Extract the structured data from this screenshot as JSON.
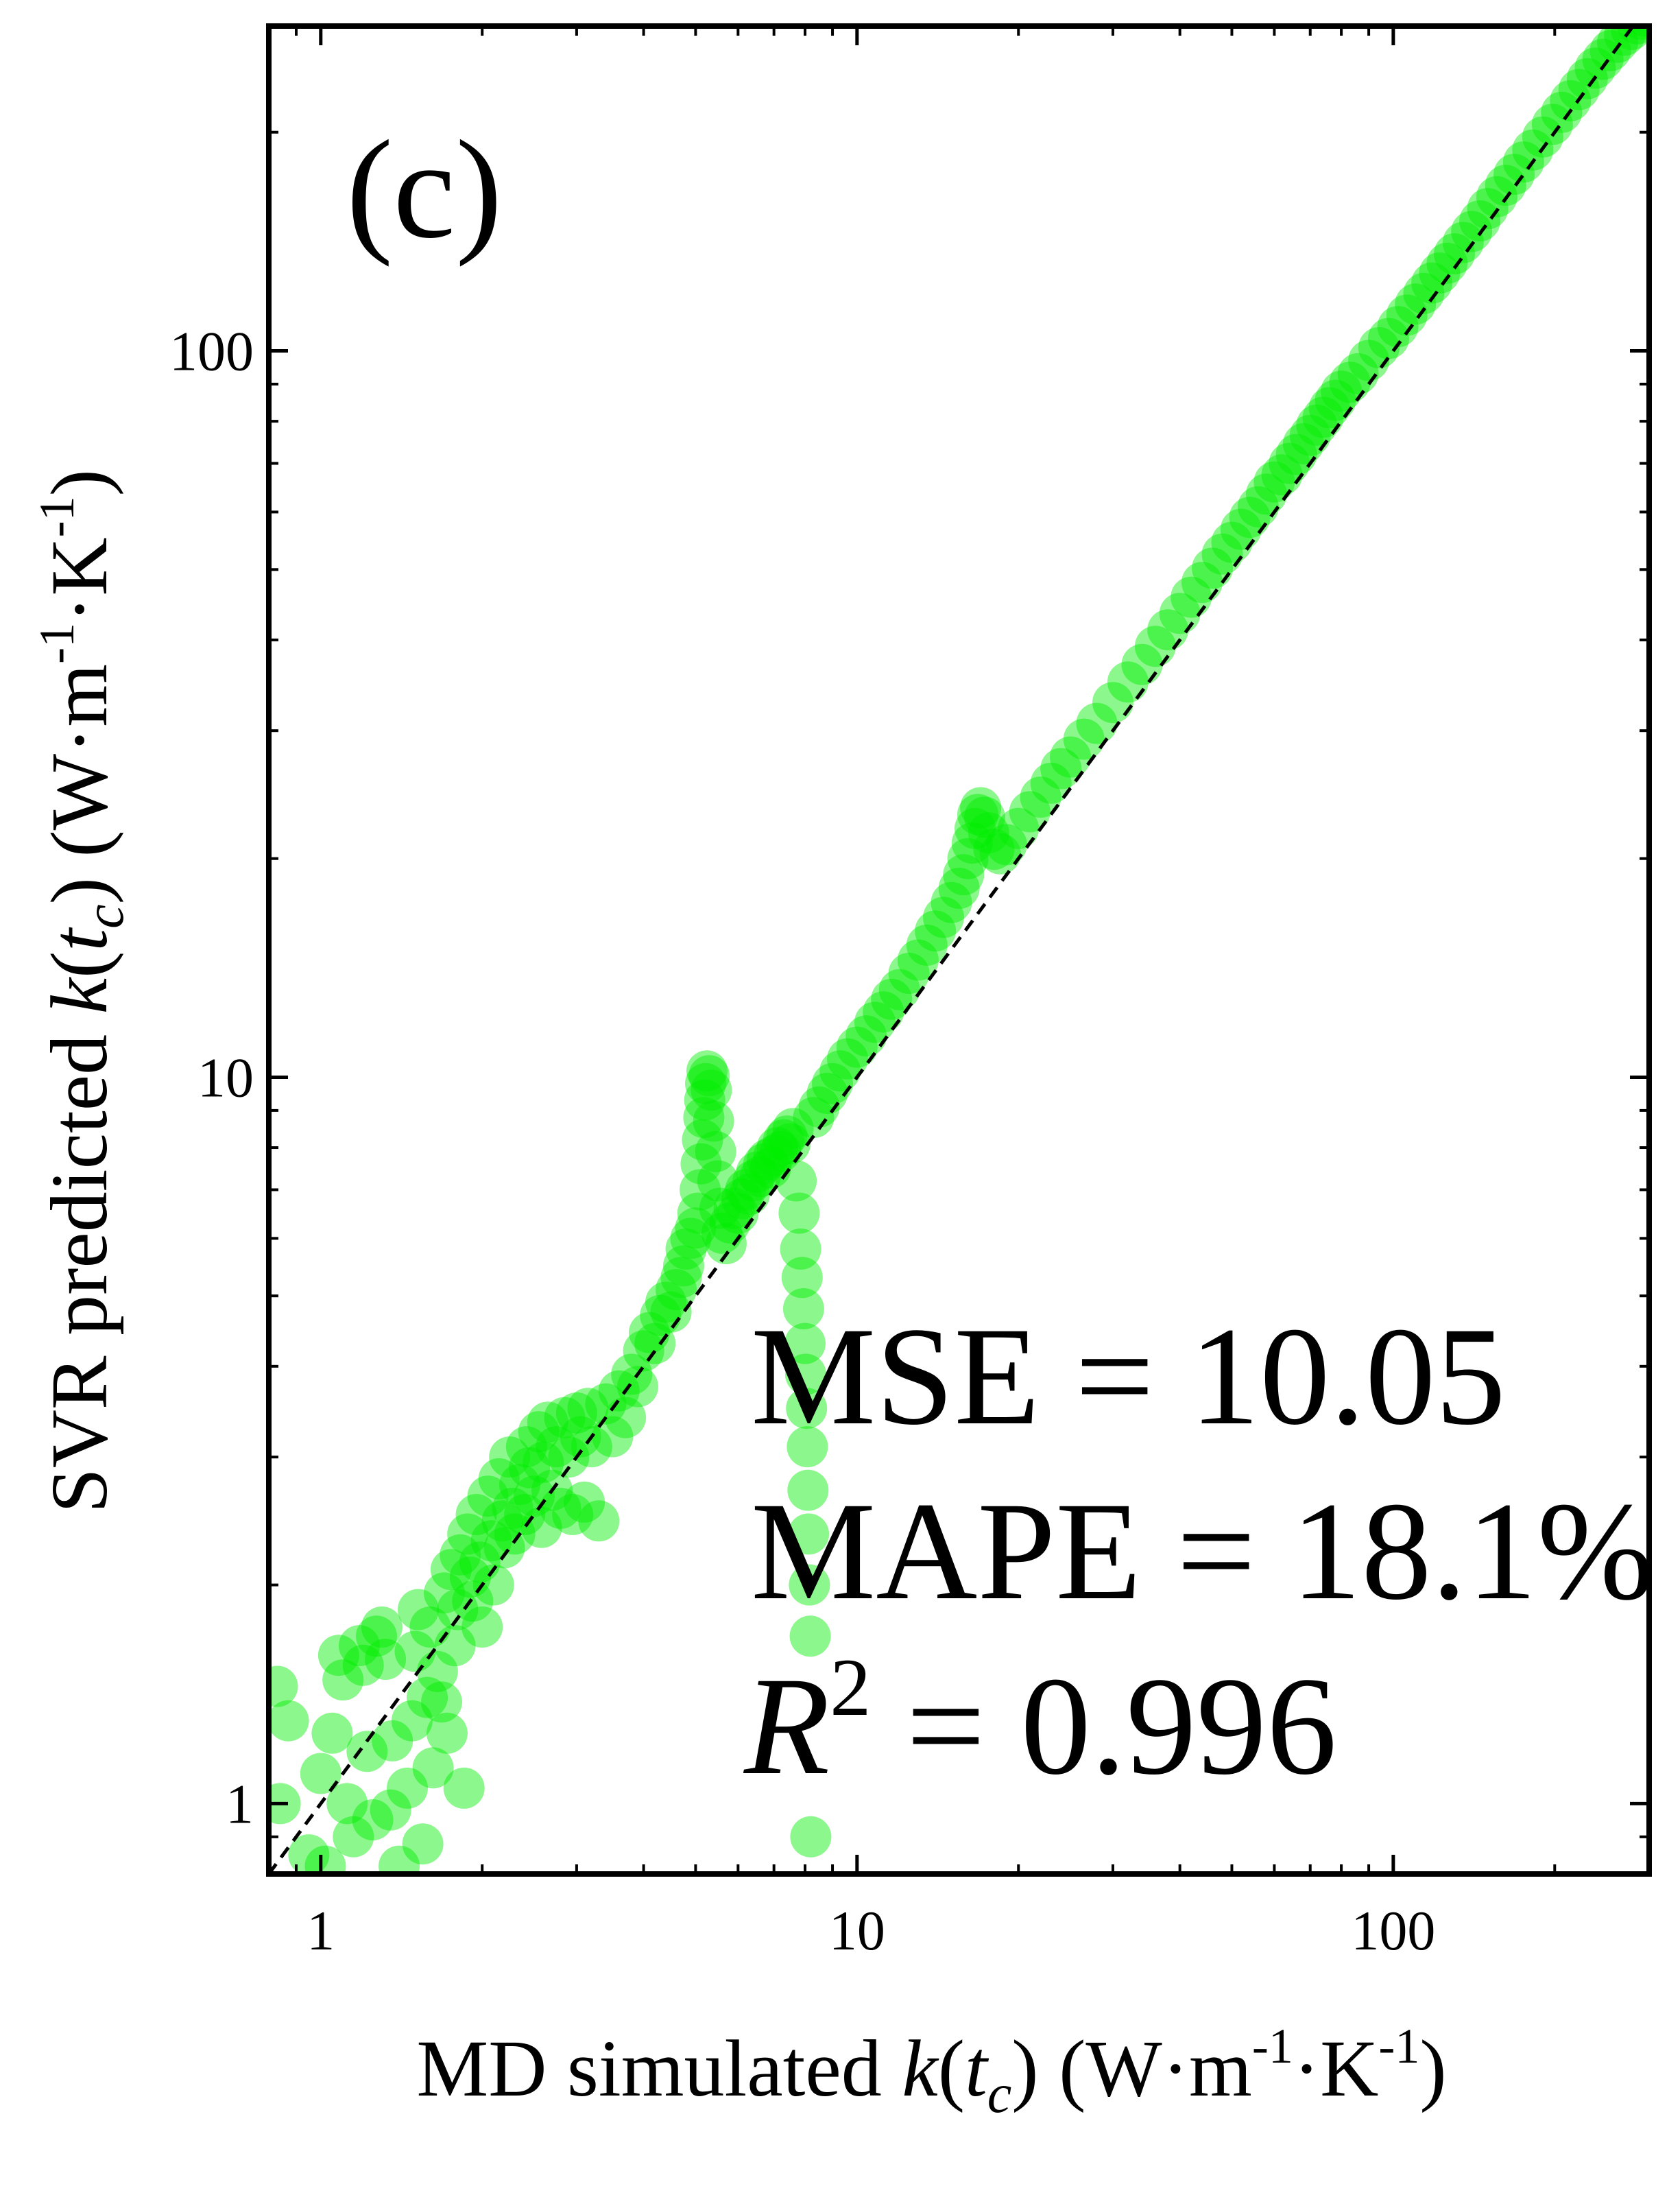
{
  "chart_data": {
    "type": "scatter",
    "panel_label": "(c)",
    "xlabel": {
      "pre": "MD simulated  ",
      "k": "k",
      "paren_open": "(",
      "t": "t",
      "sub": "c",
      "paren_close": ")",
      "unit_open": "  (W·m",
      "exp1": "-1",
      "mid": "·K",
      "exp2": "-1",
      "unit_close": ")"
    },
    "ylabel": {
      "pre": "SVR predicted  ",
      "k": "k",
      "paren_open": "(",
      "t": "t",
      "sub": "c",
      "paren_close": ")",
      "unit_open": "  (W·m",
      "exp1": "-1",
      "mid": "·K",
      "exp2": "-1",
      "unit_close": ")"
    },
    "xscale": "log",
    "yscale": "log",
    "xlim": [
      0.8,
      300
    ],
    "ylim": [
      0.8,
      280
    ],
    "xticks": [
      {
        "value": 1,
        "label": "1"
      },
      {
        "value": 10,
        "label": "10"
      },
      {
        "value": 100,
        "label": "100"
      }
    ],
    "yticks": [
      {
        "value": 1,
        "label": "1"
      },
      {
        "value": 10,
        "label": "10"
      },
      {
        "value": 100,
        "label": "100"
      }
    ],
    "grid": false,
    "legend": "none",
    "reference_line": {
      "style": "dashed",
      "color": "#000000",
      "from": [
        0.8,
        0.8
      ],
      "to": [
        280,
        280
      ]
    },
    "marker_color": "#00ee00",
    "marker_opacity": 0.45,
    "stats": {
      "mse": "MSE = 10.05",
      "mape": "MAPE = 18.1%",
      "r2_symbol": "R",
      "r2_exp": "2",
      "r2_value": " = 0.996"
    },
    "points": [
      [
        0.83,
        1.45
      ],
      [
        0.84,
        1.0
      ],
      [
        0.87,
        1.3
      ],
      [
        0.95,
        0.85
      ],
      [
        1.0,
        1.1
      ],
      [
        1.02,
        0.82
      ],
      [
        1.05,
        1.25
      ],
      [
        1.08,
        1.6
      ],
      [
        1.1,
        1.48
      ],
      [
        1.12,
        1.0
      ],
      [
        1.15,
        0.9
      ],
      [
        1.18,
        1.65
      ],
      [
        1.2,
        1.55
      ],
      [
        1.22,
        1.18
      ],
      [
        1.25,
        0.95
      ],
      [
        1.27,
        1.7
      ],
      [
        1.3,
        1.75
      ],
      [
        1.32,
        1.58
      ],
      [
        1.35,
        0.98
      ],
      [
        1.36,
        1.22
      ],
      [
        1.4,
        0.82
      ],
      [
        1.45,
        1.05
      ],
      [
        1.48,
        1.3
      ],
      [
        1.5,
        1.62
      ],
      [
        1.52,
        1.85
      ],
      [
        1.55,
        0.88
      ],
      [
        1.58,
        1.4
      ],
      [
        1.6,
        1.75
      ],
      [
        1.62,
        1.12
      ],
      [
        1.65,
        1.52
      ],
      [
        1.68,
        1.38
      ],
      [
        1.7,
        1.95
      ],
      [
        1.72,
        1.25
      ],
      [
        1.75,
        2.1
      ],
      [
        1.78,
        1.65
      ],
      [
        1.8,
        1.85
      ],
      [
        1.82,
        2.2
      ],
      [
        1.85,
        1.05
      ],
      [
        1.88,
        2.35
      ],
      [
        1.9,
        2.05
      ],
      [
        1.92,
        1.9
      ],
      [
        1.95,
        2.5
      ],
      [
        1.98,
        2.15
      ],
      [
        2.0,
        1.75
      ],
      [
        2.05,
        2.65
      ],
      [
        2.08,
        2.3
      ],
      [
        2.1,
        2.0
      ],
      [
        2.15,
        2.8
      ],
      [
        2.18,
        2.45
      ],
      [
        2.2,
        2.25
      ],
      [
        2.25,
        3.0
      ],
      [
        2.28,
        2.55
      ],
      [
        2.3,
        2.35
      ],
      [
        2.35,
        2.75
      ],
      [
        2.4,
        2.5
      ],
      [
        2.42,
        3.1
      ],
      [
        2.45,
        2.9
      ],
      [
        2.5,
        2.65
      ],
      [
        2.55,
        3.25
      ],
      [
        2.58,
        2.4
      ],
      [
        2.6,
        2.95
      ],
      [
        2.65,
        3.35
      ],
      [
        2.7,
        2.7
      ],
      [
        2.75,
        3.1
      ],
      [
        2.8,
        2.55
      ],
      [
        2.85,
        3.4
      ],
      [
        2.9,
        3.0
      ],
      [
        2.95,
        2.5
      ],
      [
        3.0,
        3.45
      ],
      [
        3.05,
        3.2
      ],
      [
        3.1,
        2.6
      ],
      [
        3.15,
        3.5
      ],
      [
        3.2,
        3.1
      ],
      [
        3.3,
        2.45
      ],
      [
        3.4,
        3.55
      ],
      [
        3.5,
        3.2
      ],
      [
        3.6,
        3.7
      ],
      [
        3.7,
        3.4
      ],
      [
        3.8,
        3.9
      ],
      [
        3.9,
        3.75
      ],
      [
        4.0,
        4.2
      ],
      [
        4.1,
        4.45
      ],
      [
        4.2,
        4.3
      ],
      [
        4.3,
        4.7
      ],
      [
        4.4,
        4.9
      ],
      [
        4.5,
        4.75
      ],
      [
        4.6,
        5.1
      ],
      [
        4.7,
        5.3
      ],
      [
        4.75,
        5.5
      ],
      [
        4.8,
        5.8
      ],
      [
        4.9,
        6.0
      ],
      [
        5.0,
        6.2
      ],
      [
        5.05,
        6.5
      ],
      [
        5.1,
        7.0
      ],
      [
        5.12,
        7.6
      ],
      [
        5.15,
        8.2
      ],
      [
        5.18,
        8.8
      ],
      [
        5.2,
        9.3
      ],
      [
        5.22,
        9.8
      ],
      [
        5.25,
        10.2
      ],
      [
        5.3,
        10.05
      ],
      [
        5.35,
        9.6
      ],
      [
        5.4,
        8.7
      ],
      [
        5.45,
        7.9
      ],
      [
        5.5,
        7.2
      ],
      [
        5.55,
        6.6
      ],
      [
        5.6,
        6.1
      ],
      [
        5.7,
        5.9
      ],
      [
        5.8,
        6.3
      ],
      [
        5.9,
        6.6
      ],
      [
        6.0,
        6.5
      ],
      [
        6.1,
        6.8
      ],
      [
        6.2,
        7.0
      ],
      [
        6.3,
        6.9
      ],
      [
        6.4,
        7.2
      ],
      [
        6.5,
        7.4
      ],
      [
        6.6,
        7.3
      ],
      [
        6.7,
        7.6
      ],
      [
        6.8,
        7.7
      ],
      [
        6.9,
        7.5
      ],
      [
        7.0,
        7.8
      ],
      [
        7.1,
        8.0
      ],
      [
        7.2,
        7.9
      ],
      [
        7.3,
        8.2
      ],
      [
        7.4,
        8.3
      ],
      [
        7.5,
        8.1
      ],
      [
        7.6,
        8.5
      ],
      [
        7.7,
        7.2
      ],
      [
        7.8,
        6.5
      ],
      [
        7.85,
        5.8
      ],
      [
        7.9,
        5.3
      ],
      [
        7.95,
        4.8
      ],
      [
        8.0,
        4.3
      ],
      [
        8.02,
        3.9
      ],
      [
        8.05,
        3.5
      ],
      [
        8.08,
        3.1
      ],
      [
        8.1,
        2.7
      ],
      [
        8.12,
        2.35
      ],
      [
        8.15,
        2.0
      ],
      [
        8.18,
        1.7
      ],
      [
        8.2,
        0.9
      ],
      [
        8.3,
        8.8
      ],
      [
        8.5,
        9.1
      ],
      [
        8.8,
        9.5
      ],
      [
        9.0,
        9.8
      ],
      [
        9.3,
        10.2
      ],
      [
        9.6,
        10.6
      ],
      [
        10.0,
        11.0
      ],
      [
        10.4,
        11.4
      ],
      [
        10.8,
        11.9
      ],
      [
        11.2,
        12.3
      ],
      [
        11.6,
        12.8
      ],
      [
        12.0,
        13.2
      ],
      [
        12.5,
        13.9
      ],
      [
        13.0,
        14.5
      ],
      [
        13.5,
        15.2
      ],
      [
        14.0,
        15.9
      ],
      [
        14.5,
        16.6
      ],
      [
        15.0,
        17.4
      ],
      [
        15.5,
        18.2
      ],
      [
        15.8,
        19.0
      ],
      [
        16.1,
        20.0
      ],
      [
        16.4,
        21.0
      ],
      [
        16.6,
        22.0
      ],
      [
        16.8,
        23.0
      ],
      [
        17.0,
        23.5
      ],
      [
        17.3,
        22.8
      ],
      [
        17.6,
        21.7
      ],
      [
        18.0,
        20.6
      ],
      [
        18.5,
        20.3
      ],
      [
        19.0,
        20.9
      ],
      [
        20.0,
        22.0
      ],
      [
        21.0,
        23.2
      ],
      [
        22.0,
        24.3
      ],
      [
        23.0,
        25.4
      ],
      [
        24.0,
        26.6
      ],
      [
        25.0,
        27.6
      ],
      [
        26.5,
        29.2
      ],
      [
        28.0,
        30.7
      ],
      [
        30.0,
        32.8
      ],
      [
        32.0,
        35.0
      ],
      [
        34.0,
        37.0
      ],
      [
        36.0,
        39.2
      ],
      [
        38.0,
        41.3
      ],
      [
        40.0,
        43.5
      ],
      [
        42.0,
        45.8
      ],
      [
        44.0,
        48.0
      ],
      [
        46.0,
        50.2
      ],
      [
        48.0,
        52.5
      ],
      [
        50.0,
        54.5
      ],
      [
        52.0,
        56.8
      ],
      [
        54.0,
        59.0
      ],
      [
        56.0,
        61.0
      ],
      [
        58.0,
        63.5
      ],
      [
        60.0,
        66.0
      ],
      [
        62.0,
        67.5
      ],
      [
        64.0,
        70.0
      ],
      [
        66.0,
        72.0
      ],
      [
        68.0,
        74.5
      ],
      [
        70.0,
        76.5
      ],
      [
        72.0,
        79.0
      ],
      [
        74.0,
        81.0
      ],
      [
        76.0,
        83.5
      ],
      [
        78.0,
        85.5
      ],
      [
        80.0,
        88.0
      ],
      [
        83.0,
        90.5
      ],
      [
        86.0,
        93.0
      ],
      [
        90.0,
        97.0
      ],
      [
        94.0,
        101.0
      ],
      [
        98.0,
        104.0
      ],
      [
        102.0,
        108.0
      ],
      [
        106.0,
        112.0
      ],
      [
        110.0,
        116.0
      ],
      [
        114.0,
        120.0
      ],
      [
        118.0,
        124.0
      ],
      [
        122.0,
        128.0
      ],
      [
        126.0,
        132.0
      ],
      [
        130.0,
        136.0
      ],
      [
        135.0,
        141.0
      ],
      [
        140.0,
        146.0
      ],
      [
        145.0,
        151.0
      ],
      [
        150.0,
        157.0
      ],
      [
        156.0,
        163.0
      ],
      [
        162.0,
        169.0
      ],
      [
        168.0,
        175.0
      ],
      [
        175.0,
        182.0
      ],
      [
        182.0,
        189.0
      ],
      [
        190.0,
        197.0
      ],
      [
        198.0,
        205.0
      ],
      [
        206.0,
        213.0
      ],
      [
        214.0,
        221.0
      ],
      [
        222.0,
        229.0
      ],
      [
        230.0,
        237.0
      ],
      [
        238.0,
        245.0
      ],
      [
        246.0,
        252.0
      ],
      [
        254.0,
        259.0
      ],
      [
        262.0,
        266.0
      ],
      [
        270.0,
        272.0
      ],
      [
        278.0,
        277.0
      ],
      [
        285.0,
        282.0
      ],
      [
        290.0,
        286.0
      ],
      [
        295.0,
        289.0
      ]
    ]
  }
}
